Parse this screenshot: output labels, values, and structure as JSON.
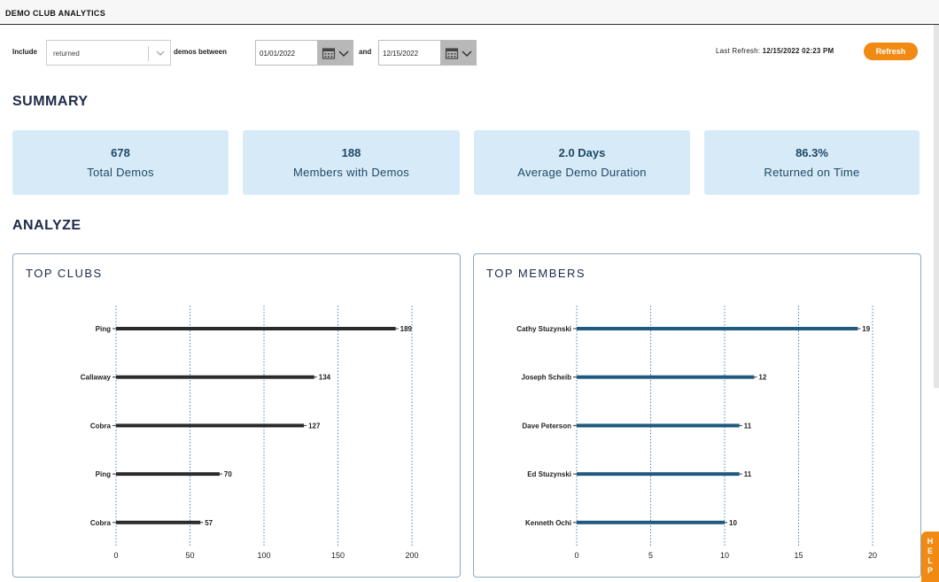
{
  "app": {
    "title": "DEMO CLUB ANALYTICS"
  },
  "filters": {
    "include_label": "Include",
    "include_value": "returned",
    "between_label": "demos between",
    "start_date": "01/01/2022",
    "and_label": "and",
    "end_date": "12/15/2022"
  },
  "refresh": {
    "last_refresh_label": "Last Refresh:",
    "last_refresh_value": "12/15/2022 02:23 PM",
    "button_label": "Refresh"
  },
  "summary": {
    "title": "SUMMARY",
    "cards": [
      {
        "value": "678",
        "label": "Total Demos"
      },
      {
        "value": "188",
        "label": "Members with Demos"
      },
      {
        "value": "2.0 Days",
        "label": "Average Demo Duration"
      },
      {
        "value": "86.3%",
        "label": "Returned on Time"
      }
    ]
  },
  "analyze": {
    "title": "ANALYZE"
  },
  "help": {
    "label": "HELP"
  },
  "colors": {
    "accent": "#f08a12",
    "card_bg": "#d6ebf7",
    "clubs_bar": "#2b2b2b",
    "members_bar": "#1f5a80"
  },
  "chart_data": [
    {
      "type": "bar",
      "orientation": "horizontal",
      "title": "TOP CLUBS",
      "categories": [
        "Ping",
        "Callaway",
        "Cobra",
        "Ping",
        "Cobra"
      ],
      "values": [
        189,
        134,
        127,
        70,
        57
      ],
      "xlim": [
        0,
        200
      ],
      "xticks": [
        0,
        50,
        100,
        150,
        200
      ],
      "grid": true,
      "color": "#2b2b2b"
    },
    {
      "type": "bar",
      "orientation": "horizontal",
      "title": "TOP MEMBERS",
      "categories": [
        "Cathy Stuzynski",
        "Joseph Scheib",
        "Dave Peterson",
        "Ed Stuzynski",
        "Kenneth Ochi"
      ],
      "values": [
        19,
        12,
        11,
        11,
        10
      ],
      "xlim": [
        0,
        20
      ],
      "xticks": [
        0,
        5,
        10,
        15,
        20
      ],
      "grid": true,
      "color": "#1f5a80"
    }
  ]
}
